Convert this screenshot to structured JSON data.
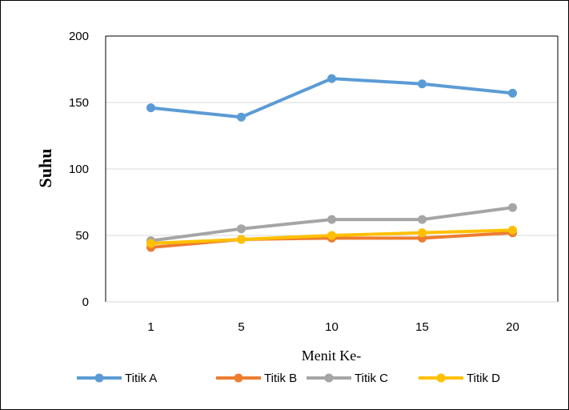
{
  "chart_data": {
    "type": "line",
    "categories": [
      "1",
      "5",
      "10",
      "15",
      "20"
    ],
    "series": [
      {
        "name": "Titik A",
        "color": "#5B9BD5",
        "values": [
          146,
          139,
          168,
          164,
          157
        ]
      },
      {
        "name": "Titik B",
        "color": "#ED7D31",
        "values": [
          41,
          47,
          48,
          48,
          52
        ]
      },
      {
        "name": "Titik C",
        "color": "#A5A5A5",
        "values": [
          46,
          55,
          62,
          62,
          71
        ]
      },
      {
        "name": "Titik D",
        "color": "#FFC000",
        "values": [
          44,
          47,
          50,
          52,
          54
        ]
      }
    ],
    "xlabel": "Menit Ke-",
    "ylabel": "Suhu",
    "ylim": [
      0,
      200
    ],
    "yticks": [
      "0",
      "50",
      "100",
      "150",
      "200"
    ],
    "grid": true,
    "legend_position": "bottom"
  }
}
